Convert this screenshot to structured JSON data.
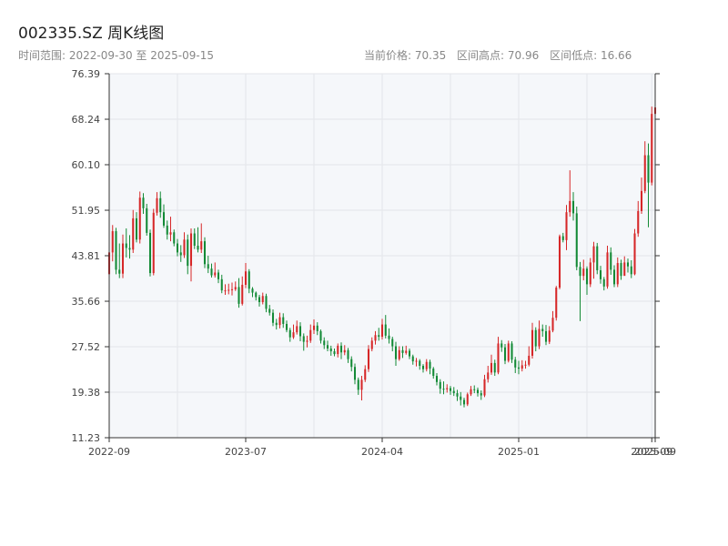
{
  "header": {
    "title": "002335.SZ 周K线图",
    "range_label": "时间范围: 2022-09-30 至 2025-09-15",
    "current_price": "当前价格: 70.35",
    "range_high": "区间高点: 70.96",
    "range_low": "区间低点: 16.66"
  },
  "colors": {
    "up": "#d62728",
    "down": "#138a36",
    "plot_bg": "#f5f7fa",
    "grid": "#e3e6ea"
  },
  "chart_data": {
    "type": "candlestick",
    "title": "002335.SZ 周K线图",
    "y_ticks": [
      "11.23",
      "19.38",
      "27.52",
      "35.66",
      "43.81",
      "51.95",
      "60.10",
      "68.24",
      "76.39"
    ],
    "ylim": [
      11.23,
      76.39
    ],
    "x_ticks": [
      {
        "label": "2022-09",
        "index": 0
      },
      {
        "label": "2023-07",
        "index": 40
      },
      {
        "label": "2024-04",
        "index": 80
      },
      {
        "label": "2025-01",
        "index": 120
      },
      {
        "label": "2025-09",
        "index": 159
      },
      {
        "label": "2025-09",
        "index": 160
      }
    ],
    "grid": true,
    "candles": [
      [
        40.5,
        44.4,
        47.2,
        40.0
      ],
      [
        44.4,
        48.2,
        49.3,
        42.8
      ],
      [
        48.2,
        41.3,
        48.8,
        40.5
      ],
      [
        41.3,
        40.6,
        46.0,
        39.8
      ],
      [
        40.6,
        46.0,
        47.6,
        39.8
      ],
      [
        46.0,
        45.2,
        48.7,
        43.5
      ],
      [
        45.2,
        44.9,
        47.5,
        43.3
      ],
      [
        44.9,
        50.5,
        52.0,
        44.3
      ],
      [
        50.5,
        46.7,
        51.6,
        46.2
      ],
      [
        46.7,
        54.2,
        55.3,
        46.0
      ],
      [
        54.2,
        52.3,
        55.0,
        51.3
      ],
      [
        52.3,
        47.9,
        53.1,
        47.4
      ],
      [
        47.9,
        40.7,
        48.5,
        40.1
      ],
      [
        40.7,
        51.5,
        52.2,
        40.3
      ],
      [
        51.5,
        54.1,
        55.2,
        51.0
      ],
      [
        54.1,
        51.6,
        55.3,
        50.6
      ],
      [
        51.6,
        49.2,
        53.0,
        48.8
      ],
      [
        49.2,
        47.6,
        50.1,
        46.7
      ],
      [
        47.6,
        48.0,
        50.8,
        46.4
      ],
      [
        48.0,
        46.0,
        48.5,
        45.5
      ],
      [
        46.0,
        44.4,
        46.8,
        43.7
      ],
      [
        44.4,
        43.9,
        45.7,
        42.7
      ],
      [
        43.9,
        46.7,
        48.0,
        43.4
      ],
      [
        46.7,
        42.0,
        47.6,
        40.5
      ],
      [
        42.0,
        47.8,
        48.7,
        39.2
      ],
      [
        47.8,
        45.6,
        48.7,
        45.0
      ],
      [
        45.6,
        44.9,
        48.9,
        44.4
      ],
      [
        44.9,
        46.4,
        49.6,
        44.3
      ],
      [
        46.4,
        42.3,
        47.1,
        41.6
      ],
      [
        42.3,
        41.5,
        43.8,
        40.7
      ],
      [
        41.5,
        40.3,
        42.4,
        39.9
      ],
      [
        40.3,
        40.8,
        42.6,
        39.9
      ],
      [
        40.8,
        39.6,
        41.3,
        38.9
      ],
      [
        39.6,
        37.6,
        40.4,
        37.1
      ],
      [
        37.6,
        37.6,
        38.7,
        36.8
      ],
      [
        37.6,
        37.7,
        38.8,
        36.9
      ],
      [
        37.7,
        37.8,
        39.0,
        36.7
      ],
      [
        37.8,
        38.2,
        39.2,
        37.5
      ],
      [
        38.2,
        35.2,
        39.8,
        34.5
      ],
      [
        35.2,
        38.6,
        40.1,
        34.9
      ],
      [
        38.6,
        41.0,
        42.5,
        38.0
      ],
      [
        41.0,
        37.9,
        41.4,
        37.1
      ],
      [
        37.9,
        37.2,
        38.2,
        36.4
      ],
      [
        37.2,
        36.4,
        37.4,
        35.8
      ],
      [
        36.4,
        35.5,
        36.8,
        34.7
      ],
      [
        35.5,
        36.6,
        37.2,
        35.1
      ],
      [
        36.6,
        34.3,
        37.0,
        33.7
      ],
      [
        34.3,
        33.6,
        35.0,
        33.1
      ],
      [
        33.6,
        31.8,
        34.2,
        31.2
      ],
      [
        31.8,
        31.4,
        32.5,
        30.6
      ],
      [
        31.4,
        32.8,
        33.6,
        30.8
      ],
      [
        32.8,
        31.6,
        33.5,
        30.9
      ],
      [
        31.6,
        30.5,
        32.2,
        30.1
      ],
      [
        30.5,
        29.2,
        30.9,
        28.4
      ],
      [
        29.2,
        30.1,
        31.5,
        28.9
      ],
      [
        30.1,
        31.2,
        32.2,
        29.7
      ],
      [
        31.2,
        29.4,
        31.9,
        28.5
      ],
      [
        29.4,
        28.4,
        29.9,
        26.8
      ],
      [
        28.4,
        28.6,
        29.5,
        27.4
      ],
      [
        28.6,
        30.5,
        31.5,
        28.2
      ],
      [
        30.5,
        31.3,
        32.4,
        29.8
      ],
      [
        31.3,
        30.3,
        31.9,
        29.6
      ],
      [
        30.3,
        28.6,
        30.6,
        28.1
      ],
      [
        28.6,
        27.8,
        29.2,
        27.1
      ],
      [
        27.8,
        27.2,
        28.6,
        26.7
      ],
      [
        27.2,
        26.7,
        27.7,
        25.9
      ],
      [
        26.7,
        26.2,
        27.2,
        25.8
      ],
      [
        26.2,
        27.7,
        28.1,
        25.6
      ],
      [
        27.7,
        26.5,
        28.3,
        25.3
      ],
      [
        26.5,
        26.9,
        27.8,
        26.0
      ],
      [
        26.9,
        25.3,
        27.3,
        24.6
      ],
      [
        25.3,
        23.9,
        25.8,
        23.1
      ],
      [
        23.9,
        21.6,
        24.5,
        20.8
      ],
      [
        21.6,
        19.8,
        22.0,
        18.9
      ],
      [
        19.8,
        21.6,
        22.3,
        17.9
      ],
      [
        21.6,
        23.5,
        24.2,
        21.2
      ],
      [
        23.5,
        27.1,
        27.8,
        23.0
      ],
      [
        27.1,
        28.6,
        29.2,
        26.7
      ],
      [
        28.6,
        29.6,
        30.3,
        27.9
      ],
      [
        29.6,
        29.3,
        30.9,
        28.6
      ],
      [
        29.3,
        31.5,
        32.5,
        28.8
      ],
      [
        31.5,
        29.5,
        33.2,
        29.0
      ],
      [
        29.5,
        28.9,
        30.8,
        28.1
      ],
      [
        28.9,
        27.6,
        29.3,
        26.7
      ],
      [
        27.6,
        25.3,
        28.4,
        24.1
      ],
      [
        25.3,
        26.9,
        27.6,
        25.0
      ],
      [
        26.9,
        26.4,
        27.6,
        25.5
      ],
      [
        26.4,
        26.8,
        27.7,
        26.1
      ],
      [
        26.8,
        25.8,
        27.2,
        25.3
      ],
      [
        25.8,
        24.9,
        26.1,
        24.3
      ],
      [
        24.9,
        25.0,
        25.5,
        24.0
      ],
      [
        25.0,
        24.1,
        25.3,
        23.4
      ],
      [
        24.1,
        23.5,
        24.4,
        22.9
      ],
      [
        23.5,
        24.8,
        25.3,
        23.1
      ],
      [
        24.8,
        23.6,
        25.2,
        22.6
      ],
      [
        23.6,
        22.3,
        23.9,
        21.8
      ],
      [
        22.3,
        21.2,
        22.8,
        20.6
      ],
      [
        21.2,
        20.0,
        21.7,
        19.1
      ],
      [
        20.0,
        19.9,
        21.3,
        19.0
      ],
      [
        19.9,
        20.1,
        20.8,
        19.3
      ],
      [
        20.1,
        19.6,
        20.5,
        18.9
      ],
      [
        19.6,
        19.2,
        20.3,
        18.7
      ],
      [
        19.2,
        18.6,
        19.8,
        17.8
      ],
      [
        18.6,
        18.0,
        19.4,
        17.0
      ],
      [
        18.0,
        17.2,
        18.4,
        16.66
      ],
      [
        17.2,
        19.0,
        19.3,
        16.9
      ],
      [
        19.0,
        19.9,
        20.5,
        18.7
      ],
      [
        19.9,
        19.8,
        20.6,
        19.2
      ],
      [
        19.8,
        19.2,
        20.2,
        18.6
      ],
      [
        19.2,
        18.8,
        19.7,
        18.0
      ],
      [
        18.8,
        21.7,
        22.5,
        18.5
      ],
      [
        21.7,
        22.9,
        24.1,
        21.1
      ],
      [
        22.9,
        24.6,
        26.1,
        22.5
      ],
      [
        24.6,
        22.9,
        25.2,
        22.3
      ],
      [
        22.9,
        28.1,
        29.3,
        22.6
      ],
      [
        28.1,
        27.4,
        28.7,
        26.6
      ],
      [
        27.4,
        25.0,
        28.0,
        24.4
      ],
      [
        25.0,
        28.1,
        28.6,
        24.7
      ],
      [
        28.1,
        25.2,
        28.5,
        24.6
      ],
      [
        25.2,
        23.8,
        25.7,
        22.8
      ],
      [
        23.8,
        23.6,
        25.0,
        22.6
      ],
      [
        23.6,
        24.2,
        25.1,
        23.1
      ],
      [
        24.2,
        24.3,
        25.0,
        23.6
      ],
      [
        24.3,
        25.9,
        27.6,
        24.0
      ],
      [
        25.9,
        30.5,
        31.8,
        25.4
      ],
      [
        30.5,
        27.6,
        31.0,
        26.7
      ],
      [
        27.6,
        30.7,
        32.2,
        27.1
      ],
      [
        30.7,
        30.3,
        31.5,
        29.3
      ],
      [
        30.3,
        28.4,
        31.4,
        27.8
      ],
      [
        28.4,
        30.4,
        31.2,
        28.0
      ],
      [
        30.4,
        32.7,
        33.9,
        30.1
      ],
      [
        32.7,
        38.1,
        38.4,
        32.2
      ],
      [
        38.1,
        47.3,
        47.6,
        37.8
      ],
      [
        47.3,
        46.6,
        47.9,
        46.2
      ],
      [
        46.6,
        51.6,
        52.9,
        44.8
      ],
      [
        51.6,
        53.6,
        59.1,
        50.8
      ],
      [
        53.6,
        51.4,
        55.2,
        50.1
      ],
      [
        51.4,
        41.8,
        52.6,
        41.2
      ],
      [
        41.8,
        40.2,
        42.7,
        32.1
      ],
      [
        40.2,
        41.5,
        43.1,
        39.4
      ],
      [
        41.5,
        38.7,
        41.9,
        36.8
      ],
      [
        38.7,
        42.6,
        43.4,
        38.2
      ],
      [
        42.6,
        45.5,
        46.3,
        39.7
      ],
      [
        45.5,
        41.2,
        46.1,
        40.5
      ],
      [
        41.2,
        39.6,
        42.0,
        38.8
      ],
      [
        39.6,
        38.3,
        40.0,
        37.6
      ],
      [
        38.3,
        44.4,
        45.6,
        37.9
      ],
      [
        44.4,
        41.3,
        45.3,
        40.4
      ],
      [
        41.3,
        38.7,
        42.1,
        38.2
      ],
      [
        38.7,
        42.5,
        43.5,
        38.2
      ],
      [
        42.5,
        40.2,
        43.1,
        39.5
      ],
      [
        40.2,
        42.6,
        43.7,
        41.5
      ],
      [
        42.6,
        41.9,
        43.3,
        40.8
      ],
      [
        41.9,
        40.5,
        43.0,
        39.8
      ],
      [
        40.5,
        47.8,
        48.6,
        40.3
      ],
      [
        47.8,
        51.8,
        53.6,
        47.2
      ],
      [
        51.8,
        55.4,
        57.8,
        51.3
      ],
      [
        55.4,
        61.8,
        64.3,
        55.0
      ],
      [
        61.8,
        56.9,
        63.9,
        48.9
      ],
      [
        56.9,
        69.2,
        70.5,
        56.4
      ],
      [
        69.2,
        70.35,
        70.96,
        68.7
      ]
    ]
  }
}
